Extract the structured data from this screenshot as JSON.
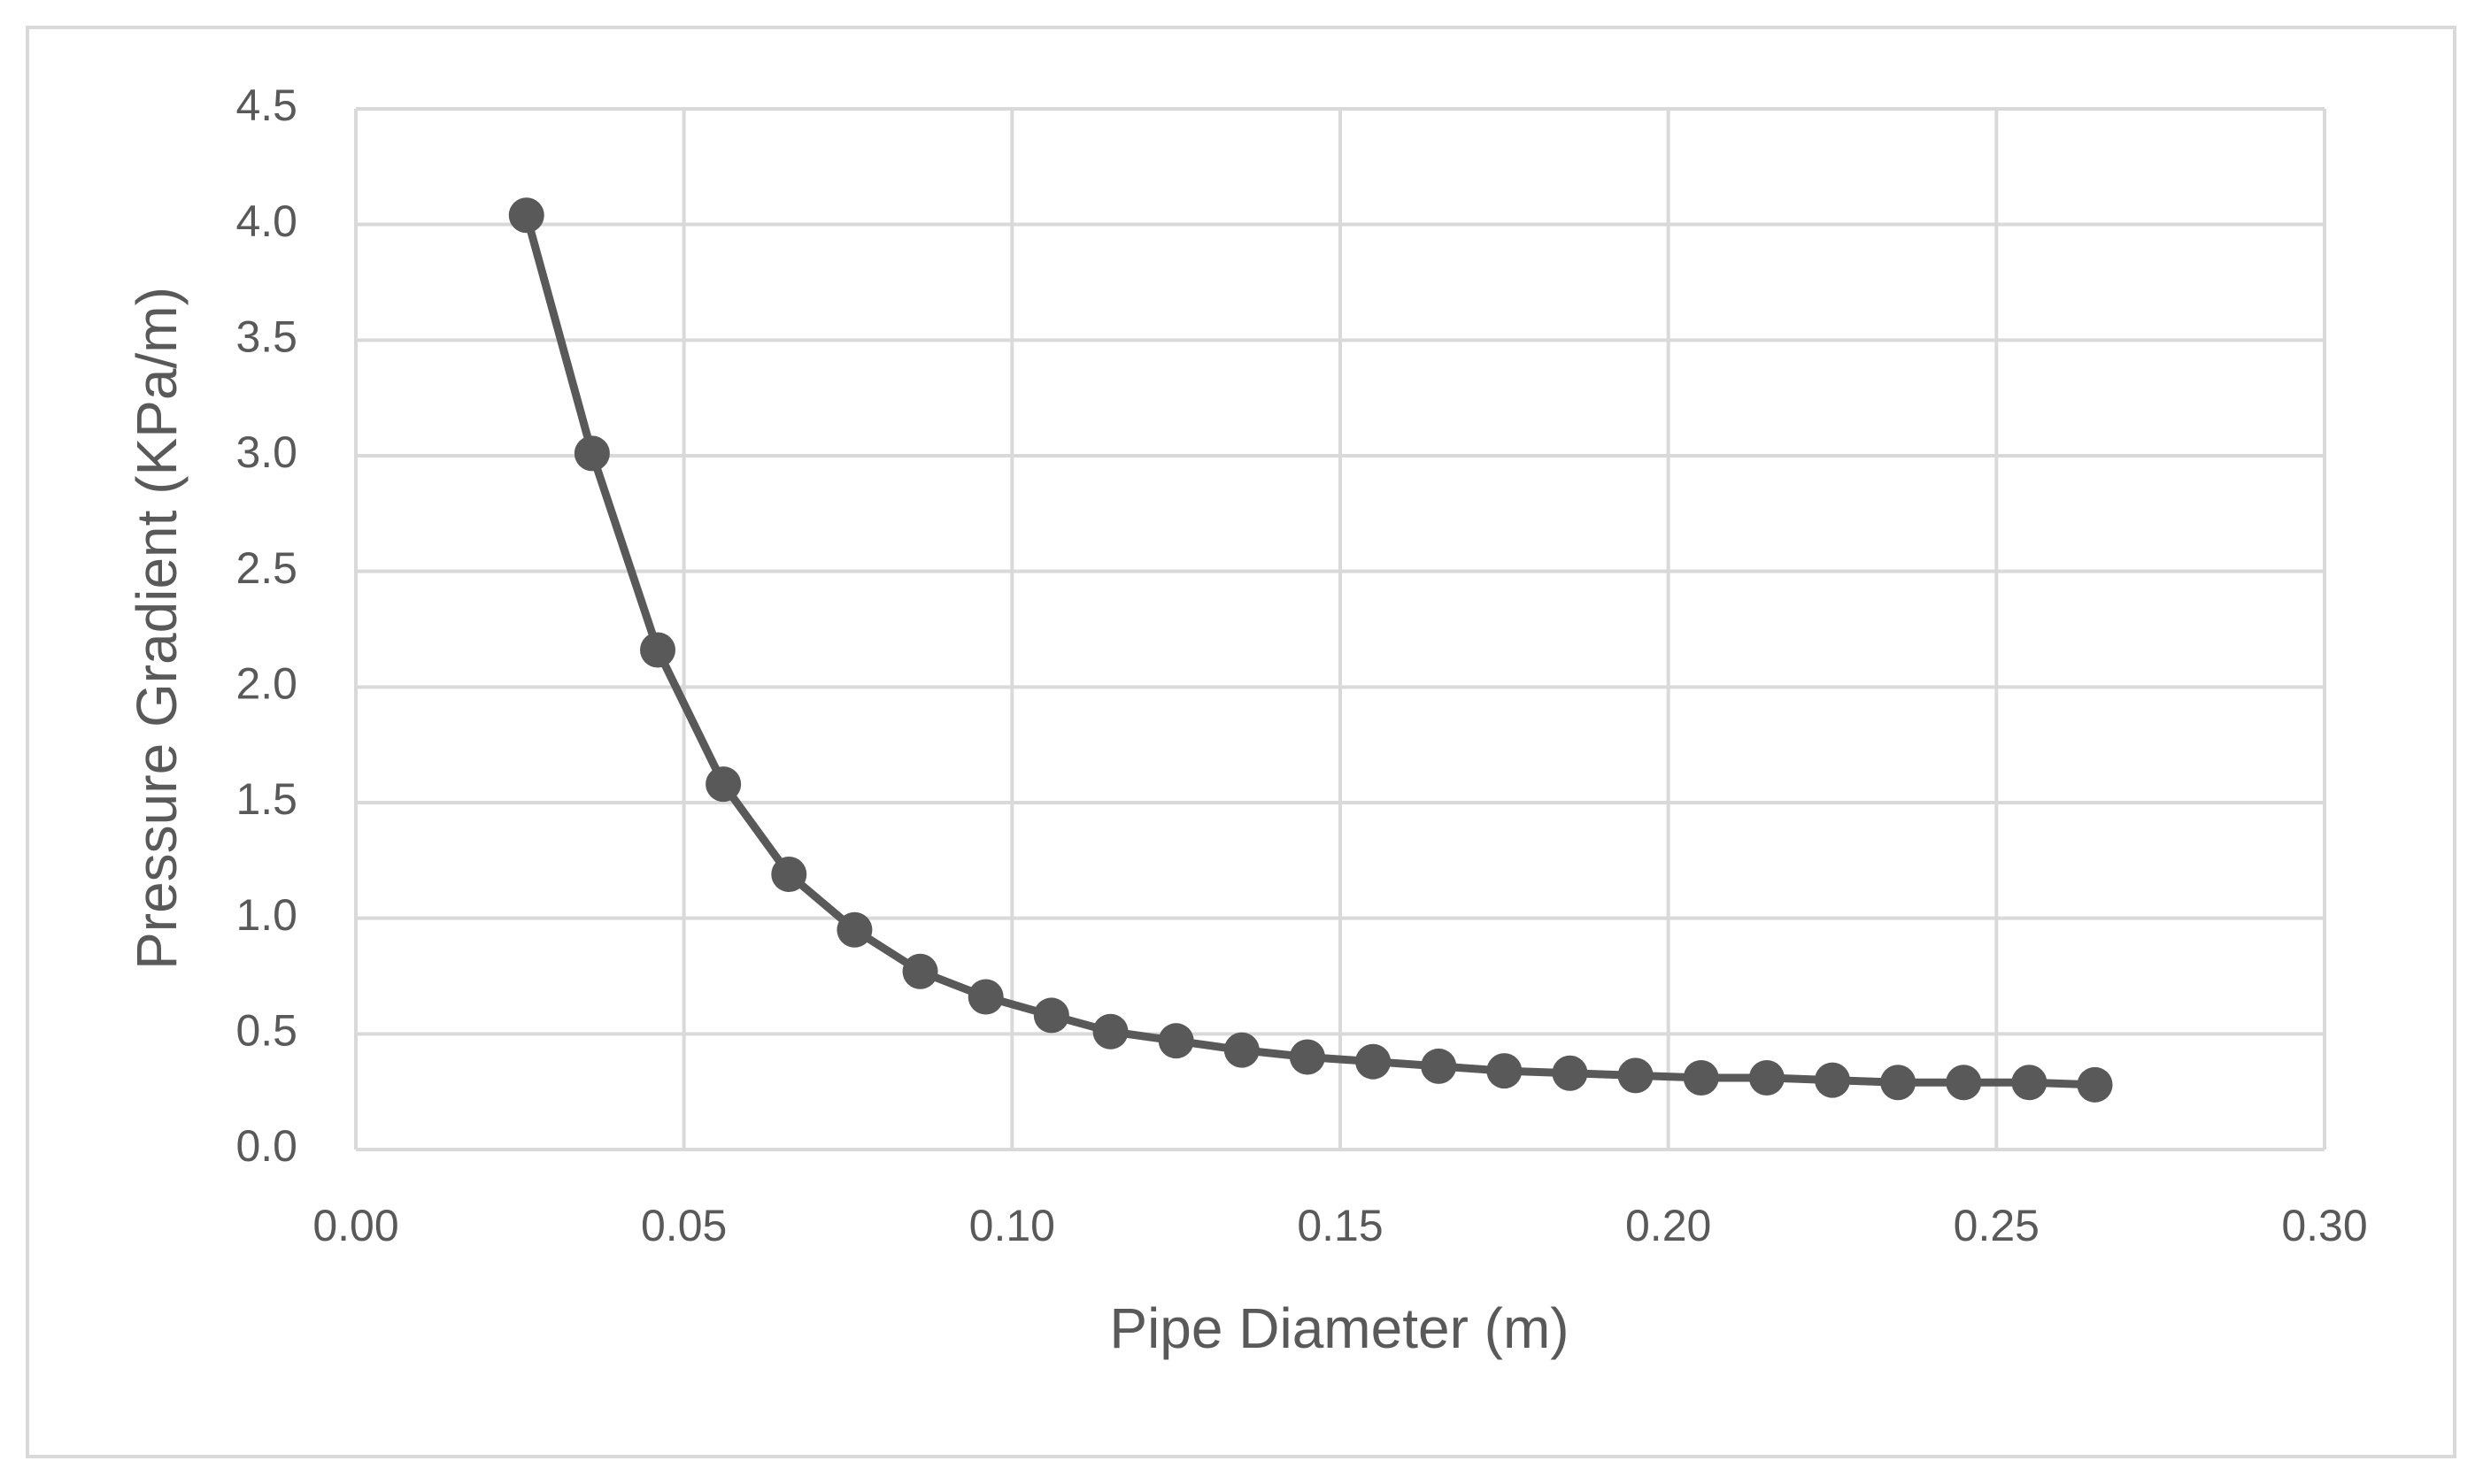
{
  "chart_data": {
    "type": "scatter",
    "x_label": "Pipe Diameter (m)",
    "y_label": "Pressure Gradient (KPa/m)",
    "color": "#595959",
    "grid": true,
    "xlim": [
      0,
      0.3
    ],
    "xticks": [
      {
        "value": 0,
        "label": "0.00"
      },
      0.05,
      {
        "value": 0.1,
        "label": "0.10"
      },
      0.15,
      {
        "value": 0.2,
        "label": "0.20"
      },
      0.25,
      {
        "value": 0.3,
        "label": "0.30"
      }
    ],
    "ylim": [
      0,
      4.5
    ],
    "yticks": [
      {
        "value": 0,
        "label": "0.0"
      },
      0.5,
      {
        "value": 1,
        "label": "1.0"
      },
      1.5,
      {
        "value": 2,
        "label": "2.0"
      },
      2.5,
      {
        "value": 3,
        "label": "3.0"
      },
      3.5,
      {
        "value": 4,
        "label": "4.0"
      },
      4.5
    ],
    "x": [
      0.026,
      0.036,
      0.046,
      0.056,
      0.066,
      0.076,
      0.086,
      0.096,
      0.106,
      0.115,
      0.125,
      0.135,
      0.145,
      0.155,
      0.165,
      0.175,
      0.185,
      0.195,
      0.205,
      0.215,
      0.225,
      0.235,
      0.245,
      0.255,
      0.265
    ],
    "values": [
      4.04,
      3.01,
      2.16,
      1.58,
      1.19,
      0.95,
      0.77,
      0.66,
      0.58,
      0.51,
      0.47,
      0.43,
      0.4,
      0.38,
      0.36,
      0.34,
      0.33,
      0.32,
      0.31,
      0.31,
      0.3,
      0.29,
      0.29,
      0.29,
      0.28
    ]
  }
}
